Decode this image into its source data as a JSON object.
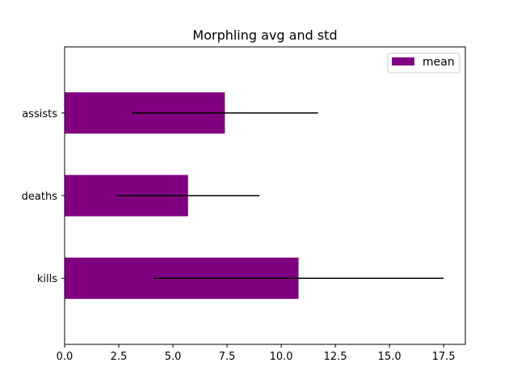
{
  "chart_data": {
    "type": "bar",
    "orientation": "horizontal",
    "title": "Morphling avg and std",
    "xlabel": "",
    "ylabel": "",
    "categories": [
      "kills",
      "deaths",
      "assists"
    ],
    "series": [
      {
        "name": "mean",
        "values": [
          10.8,
          5.7,
          7.4
        ],
        "error": [
          6.7,
          3.3,
          4.3
        ]
      }
    ],
    "xlim": [
      0,
      18.5
    ],
    "xticks": [
      0,
      2.5,
      5,
      7.5,
      10,
      12.5,
      15,
      17.5
    ],
    "xtick_labels": [
      "0.0",
      "2.5",
      "5.0",
      "7.5",
      "10.0",
      "12.5",
      "15.0",
      "17.5"
    ],
    "grid": false,
    "legend_position": "upper right",
    "colors": {
      "bar": "#800080",
      "error": "#000000"
    }
  }
}
